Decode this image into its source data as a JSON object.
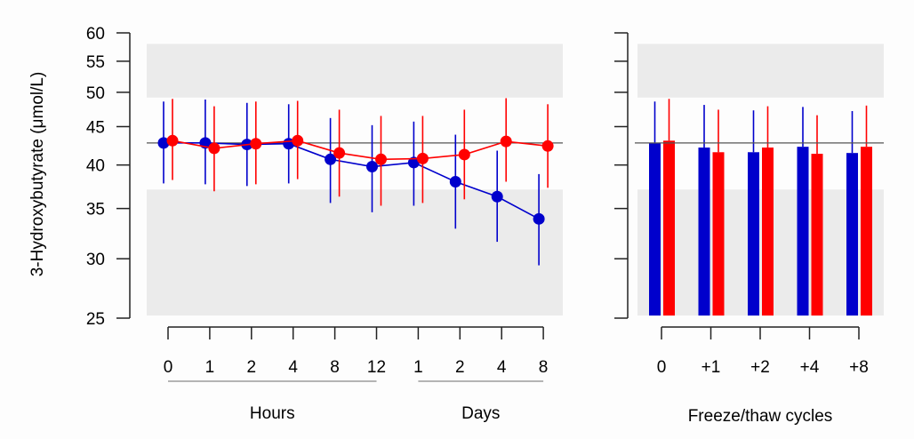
{
  "chart_data": [
    {
      "type": "line",
      "panel": "stability-time",
      "ylabel": "3-Hydroxybutyrate (μmol/L)",
      "yscale": "log",
      "ylim": [
        25,
        60
      ],
      "yticks": [
        25,
        30,
        35,
        40,
        45,
        50,
        55,
        60
      ],
      "reference_line": 42.8,
      "acceptable_range": [
        37.1,
        49.2
      ],
      "shaded_range_outer": [
        25.2,
        58.0
      ],
      "categories": [
        "0",
        "1",
        "2",
        "4",
        "8",
        "12",
        "1",
        "2",
        "4",
        "8"
      ],
      "groups": [
        {
          "label": "Hours",
          "from": 0,
          "to": 5
        },
        {
          "label": "Days",
          "from": 6,
          "to": 9
        }
      ],
      "series": [
        {
          "name": "blue",
          "color": "#0000CC",
          "values": [
            42.8,
            42.8,
            42.6,
            42.7,
            40.7,
            39.8,
            40.3,
            38.0,
            36.3,
            33.9
          ],
          "err_high": [
            48.6,
            48.9,
            48.4,
            48.2,
            46.2,
            45.2,
            45.7,
            43.9,
            41.8,
            38.9
          ],
          "err_low": [
            37.8,
            37.7,
            37.5,
            37.8,
            35.6,
            34.6,
            35.3,
            32.9,
            31.6,
            29.4
          ]
        },
        {
          "name": "red",
          "color": "#FF0000",
          "values": [
            43.1,
            42.1,
            42.7,
            43.1,
            41.5,
            40.7,
            40.8,
            41.3,
            43.0,
            42.4
          ],
          "err_high": [
            49.0,
            47.9,
            48.6,
            48.7,
            47.4,
            46.5,
            46.5,
            47.4,
            49.1,
            48.2
          ],
          "err_low": [
            38.2,
            36.9,
            37.7,
            38.3,
            36.3,
            35.3,
            35.6,
            36.0,
            38.0,
            37.3
          ]
        }
      ]
    },
    {
      "type": "bar",
      "panel": "freeze-thaw",
      "xlabel": "Freeze/thaw cycles",
      "yscale": "log",
      "ylim": [
        25,
        60
      ],
      "yticks": [
        25,
        30,
        35,
        40,
        45,
        50,
        55,
        60
      ],
      "reference_line": 42.8,
      "acceptable_range": [
        37.1,
        49.2
      ],
      "shaded_range_outer": [
        25.2,
        58.0
      ],
      "categories": [
        "0",
        "+1",
        "+2",
        "+4",
        "+8"
      ],
      "series": [
        {
          "name": "blue",
          "color": "#0000CC",
          "values": [
            42.8,
            42.2,
            41.6,
            42.3,
            41.5
          ],
          "err_high": [
            48.6,
            48.1,
            47.3,
            47.8,
            47.2
          ]
        },
        {
          "name": "red",
          "color": "#FF0000",
          "values": [
            43.1,
            41.6,
            42.2,
            41.4,
            42.3
          ],
          "err_high": [
            49.0,
            47.4,
            47.9,
            46.6,
            48.0
          ]
        }
      ]
    }
  ],
  "colors": {
    "shade": "#EBEBEB",
    "axis": "#222222",
    "reference": "#555555",
    "group_rule": "#888888"
  }
}
